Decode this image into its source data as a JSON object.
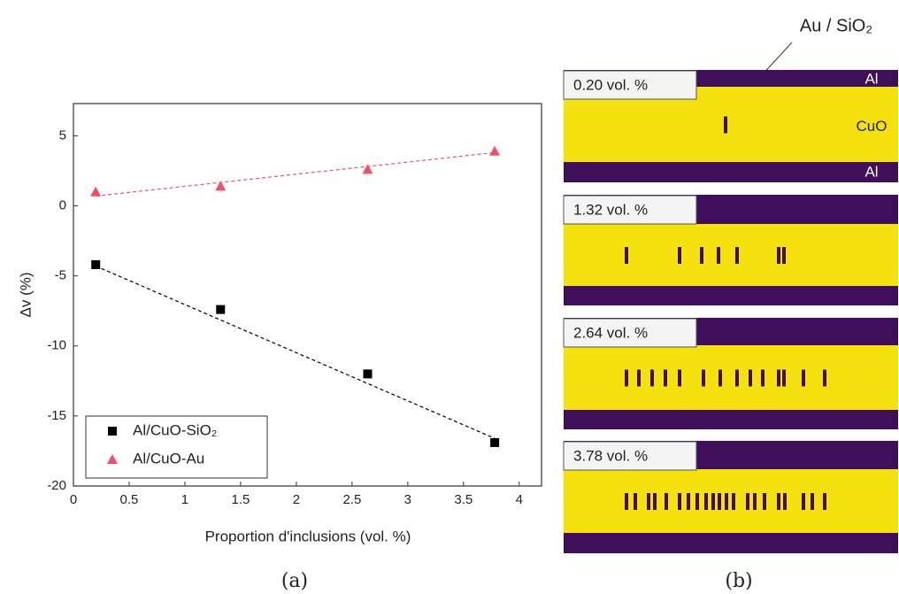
{
  "chart_data": {
    "type": "scatter",
    "xlabel": "Proportion d'inclusions (vol. %)",
    "ylabel": "Δv (%)",
    "x": [
      0.2,
      1.32,
      2.64,
      3.78
    ],
    "series": [
      {
        "name": "Al/CuO-SiO₂",
        "color": "#000000",
        "marker": "square",
        "values": [
          -4.2,
          -7.4,
          -12.0,
          -16.9
        ],
        "trend": {
          "x": [
            0.2,
            3.78
          ],
          "values": [
            -4.3,
            -16.6
          ]
        }
      },
      {
        "name": "Al/CuO-Au",
        "color": "#f0506e",
        "marker": "triangle",
        "values": [
          1.0,
          1.4,
          2.6,
          3.9
        ],
        "trend": {
          "x": [
            0.2,
            3.78
          ],
          "values": [
            0.7,
            3.8
          ]
        }
      }
    ],
    "xlim": [
      0,
      4.2
    ],
    "ylim": [
      -20,
      7.3
    ],
    "xticks": [
      0,
      0.5,
      1,
      1.5,
      2,
      2.5,
      3,
      3.5,
      4
    ],
    "yticks": [
      5,
      0,
      -5,
      -10,
      -15,
      -20
    ],
    "legend": "lower left",
    "caption": "(a)"
  },
  "panel_b": {
    "annotation": "Au / SiO₂",
    "caption": "(b)",
    "panels": [
      {
        "label": "0.20 vol. %",
        "layers": [
          "Al",
          "CuO",
          "Al"
        ]
      },
      {
        "label": "1.32 vol. %"
      },
      {
        "label": "2.64 vol. %"
      },
      {
        "label": "3.78 vol. %"
      }
    ]
  }
}
